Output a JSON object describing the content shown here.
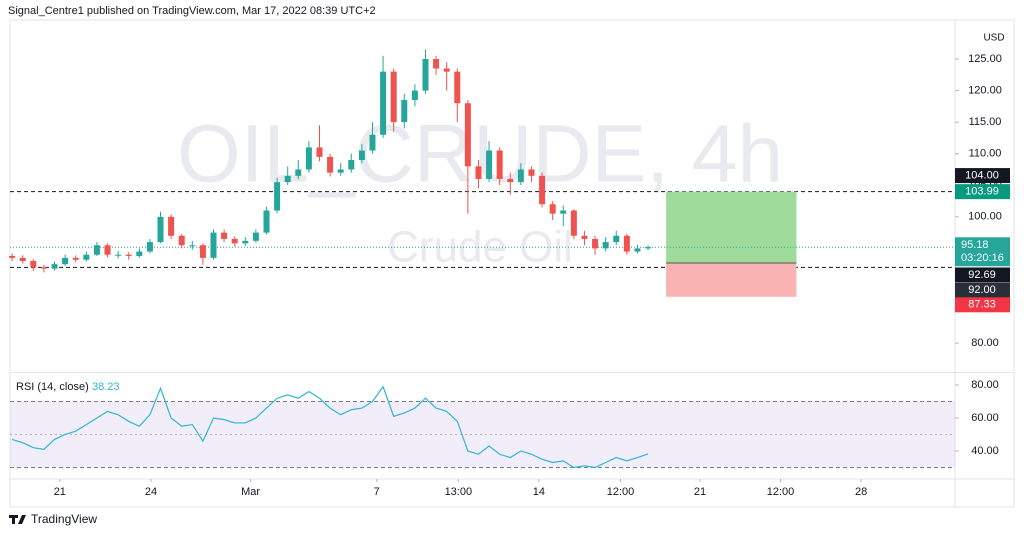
{
  "header": "Signal_Centre1 published on TradingView.com, Mar 17, 2022 08:39 UTC+2",
  "footer": "TradingView",
  "chart_data": {
    "type": "candlestick",
    "symbol": "OIL_CRUDE, 4h",
    "description": "Crude Oil",
    "currency": "USD",
    "up_color": "#26a69a",
    "down_color": "#ef5350",
    "xlim": [
      -0.2,
      88.96
    ],
    "xticks": [
      {
        "value": 4.5,
        "label": "21"
      },
      {
        "value": 13.1,
        "label": "24"
      },
      {
        "value": 22.5,
        "label": "Mar"
      },
      {
        "value": 34.4,
        "label": "7"
      },
      {
        "value": 42.1,
        "label": "13:00"
      },
      {
        "value": 49.7,
        "label": "14"
      },
      {
        "value": 57.4,
        "label": "12:00"
      },
      {
        "value": 64.9,
        "label": "21"
      },
      {
        "value": 72.5,
        "label": "12:00"
      },
      {
        "value": 80.1,
        "label": "28"
      }
    ],
    "ylim": [
      75.42,
      131.18
    ],
    "yticks": [
      {
        "value": 80,
        "label": "80.00"
      },
      {
        "value": 100,
        "label": "100.00"
      },
      {
        "value": 105,
        "label": "105.00"
      },
      {
        "value": 110,
        "label": "110.00"
      },
      {
        "value": 115,
        "label": "115.00"
      },
      {
        "value": 120,
        "label": "120.00"
      },
      {
        "value": 125,
        "label": "125.00"
      }
    ],
    "open": [
      93.8,
      93.5,
      93,
      92,
      91.8,
      92.5,
      93.5,
      93.2,
      94,
      95.5,
      94,
      94,
      93.8,
      94.5,
      96,
      100,
      97,
      95.5,
      95.5,
      93.5,
      97.5,
      96.5,
      95.8,
      96.2,
      97.5,
      101,
      105.5,
      106.5,
      107.5,
      111,
      109.5,
      107,
      107.5,
      109,
      110.5,
      113,
      123,
      115,
      118.5,
      120,
      125,
      123.5,
      123,
      118,
      108,
      106,
      110.5,
      106,
      105.5,
      107.5,
      106.5,
      102,
      100.5,
      101,
      97,
      96.5,
      95,
      96,
      97,
      94.5,
      95
    ],
    "high": [
      94.2,
      93.9,
      93.3,
      92.4,
      92.9,
      94,
      93.9,
      94.5,
      96,
      95.8,
      94.6,
      94.4,
      95,
      96.5,
      100.8,
      100.4,
      97.3,
      96.2,
      95.8,
      98,
      98,
      96.9,
      96.8,
      98,
      101.6,
      106.2,
      108,
      109,
      112,
      114.5,
      110,
      108.5,
      110,
      111.5,
      115,
      125.5,
      123.5,
      119.5,
      121,
      126.5,
      125.5,
      124.5,
      123.5,
      118.5,
      109,
      112,
      111,
      107,
      108.5,
      108,
      107,
      102.5,
      101.8,
      101.2,
      97.8,
      97,
      96.8,
      97.8,
      97.3,
      95.6,
      95.5
    ],
    "low": [
      93,
      92.6,
      91.4,
      91.2,
      91.5,
      92.2,
      92.8,
      92.9,
      93.8,
      93.6,
      93.4,
      93.2,
      93.5,
      94.2,
      95.8,
      96.5,
      95,
      94.8,
      92.4,
      93.2,
      96,
      95.3,
      95.4,
      95.9,
      97.2,
      100.6,
      105,
      106,
      107,
      108.8,
      106.4,
      106.5,
      107,
      108.5,
      110,
      112.5,
      113.5,
      114,
      117.5,
      119.5,
      122.5,
      120,
      115,
      100.5,
      104.5,
      105.5,
      105,
      103.5,
      105,
      105.5,
      101.5,
      99.5,
      98.5,
      96.5,
      95.5,
      94,
      94.5,
      95.5,
      94,
      94.2,
      94.7
    ],
    "close": [
      93.5,
      93,
      92,
      91.8,
      92.5,
      93.5,
      93.2,
      94,
      95.5,
      94,
      94,
      93.8,
      94.5,
      96,
      100,
      97,
      95.5,
      95.5,
      93.5,
      97.5,
      96.5,
      95.8,
      96.2,
      97.5,
      101,
      105.5,
      106.5,
      107.5,
      111,
      109.5,
      107,
      107.5,
      109,
      110.5,
      113,
      123,
      115,
      118.5,
      120,
      125,
      123.5,
      123,
      118,
      108,
      106,
      110.5,
      106,
      105.5,
      107.5,
      106.5,
      102,
      100.5,
      101,
      97,
      96.5,
      95,
      96,
      97,
      94.5,
      95,
      95.2
    ],
    "last_price": {
      "value": 95.18,
      "label": "95.18",
      "countdown": "03:20:16",
      "color": "#26a69a"
    },
    "price_labels": [
      {
        "value": 104,
        "label": "104.00",
        "color": "#131722"
      },
      {
        "value": 103.99,
        "label": "103.99",
        "color": "#089981"
      },
      {
        "value": 92.69,
        "label": "92.69",
        "color": "#131722"
      },
      {
        "value": 92,
        "label": "92.00",
        "color": "#2a2e39"
      },
      {
        "value": 87.33,
        "label": "87.33",
        "color": "#f23645"
      }
    ],
    "dashed_lines": [
      103.99,
      92
    ],
    "position": {
      "target": 103.99,
      "entry": 92.69,
      "stop": 87.33,
      "x_start": 61.7,
      "x_end": 74.0,
      "profit_color": "#9fdc9b",
      "loss_color": "#f9b3b3"
    },
    "rsi": {
      "label": "RSI (14, close)",
      "value_label": "38.23",
      "color": "#2fb5d6",
      "values": [
        47,
        45,
        42,
        41,
        47,
        50,
        52,
        56,
        60,
        64,
        62,
        58,
        55,
        62,
        78,
        60,
        55,
        56,
        46,
        60,
        59,
        57,
        57,
        60,
        66,
        72,
        74,
        72,
        76,
        72,
        66,
        62,
        65,
        66,
        70,
        79,
        61,
        63,
        66,
        72,
        66,
        64,
        58,
        40,
        38,
        43,
        38,
        36,
        40,
        38,
        35,
        33,
        34,
        30,
        31,
        30,
        33,
        36,
        34,
        36,
        38.23
      ],
      "ylim": [
        23.6,
        87.3
      ],
      "yticks": [
        {
          "value": 40,
          "label": "40.00"
        },
        {
          "value": 60,
          "label": "60.00"
        },
        {
          "value": 80,
          "label": "80.00"
        }
      ],
      "bands": [
        30,
        70
      ],
      "midline": 50
    }
  }
}
